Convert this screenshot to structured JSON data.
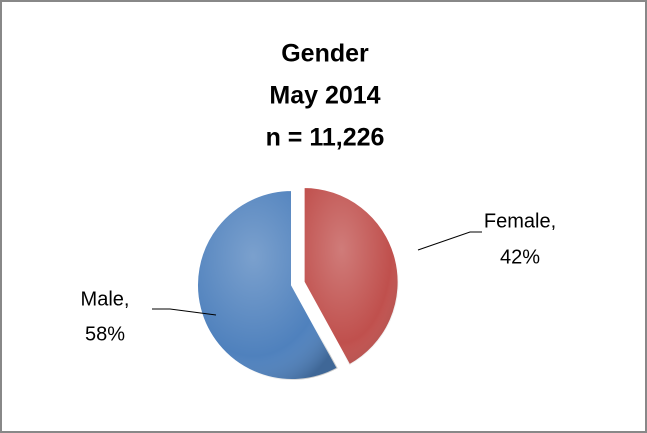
{
  "chart_data": {
    "type": "pie",
    "title": [
      "Gender",
      "May 2014",
      "n = 11,226"
    ],
    "categories": [
      "Female,",
      "Male,"
    ],
    "values": [
      42,
      58
    ],
    "value_labels": [
      "42%",
      "58%"
    ],
    "colors": [
      "#c0504d",
      "#4f81bd"
    ],
    "exploded": [
      true,
      false
    ]
  }
}
